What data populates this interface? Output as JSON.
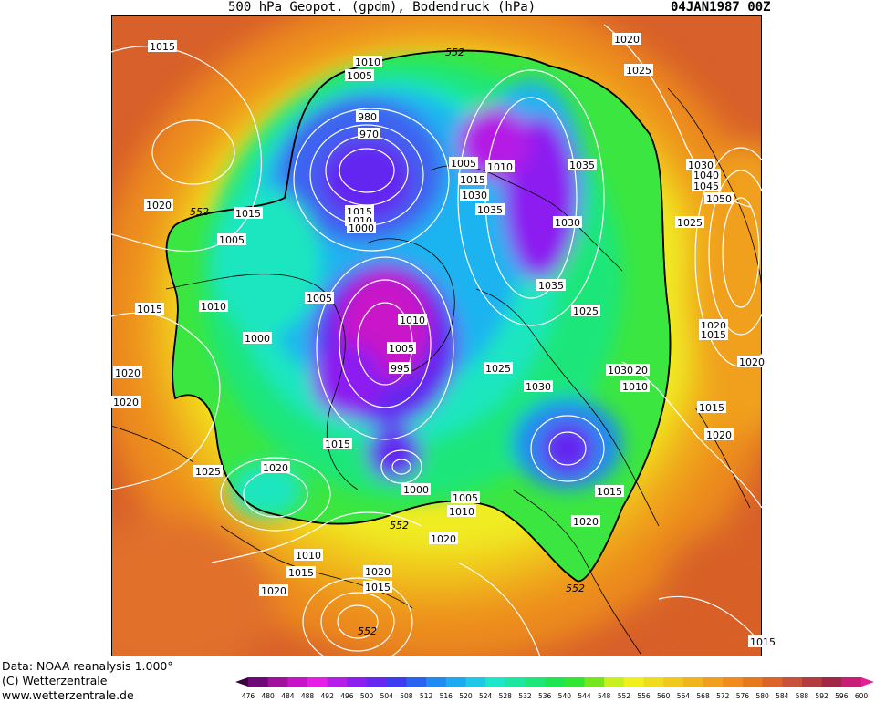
{
  "header": {
    "title": "500 hPa Geopot. (gpdm), Bodendruck (hPa)",
    "date": "04JAN1987 00Z"
  },
  "credits": {
    "data": "Data: NOAA reanalysis 1.000°",
    "copyright": "(C) Wetterzentrale",
    "url": "www.wetterzentrale.de"
  },
  "colorbar": {
    "ticks": [
      "476",
      "480",
      "484",
      "488",
      "492",
      "496",
      "500",
      "504",
      "508",
      "512",
      "516",
      "520",
      "524",
      "528",
      "532",
      "536",
      "540",
      "544",
      "548",
      "552",
      "556",
      "560",
      "564",
      "568",
      "572",
      "576",
      "580",
      "584",
      "588",
      "592",
      "596",
      "600"
    ],
    "colors": [
      "#3d0040",
      "#6e0a78",
      "#a0109c",
      "#c814c8",
      "#e61ee6",
      "#b41ee6",
      "#8c1ef0",
      "#6428f0",
      "#3c3cf0",
      "#2864f0",
      "#1e8cf0",
      "#1eaaf0",
      "#1ec8e6",
      "#1ee6c8",
      "#1ee6a0",
      "#1ee678",
      "#1ee650",
      "#32e632",
      "#78e61e",
      "#c8f01e",
      "#f0f01e",
      "#f0dc1e",
      "#f0c81e",
      "#f0b41e",
      "#f0a01e",
      "#f08c1e",
      "#e6781e",
      "#dc6428",
      "#c8503c",
      "#b43c3c",
      "#a02846",
      "#c81e78",
      "#e61e96"
    ]
  },
  "map": {
    "contour_552_label": "552",
    "pressure_labels": [
      {
        "id": "p1",
        "text": "1015"
      },
      {
        "id": "p2",
        "text": "1010"
      },
      {
        "id": "p3",
        "text": "1005"
      },
      {
        "id": "p4",
        "text": "980"
      },
      {
        "id": "p5",
        "text": "970"
      },
      {
        "id": "p6",
        "text": "1020"
      },
      {
        "id": "p7",
        "text": "1025"
      },
      {
        "id": "p8",
        "text": "1005"
      },
      {
        "id": "p9",
        "text": "1010"
      },
      {
        "id": "p10",
        "text": "1015"
      },
      {
        "id": "p11",
        "text": "1030"
      },
      {
        "id": "p12",
        "text": "1035"
      },
      {
        "id": "p13",
        "text": "1035"
      },
      {
        "id": "p14",
        "text": "1030"
      },
      {
        "id": "p15",
        "text": "1030"
      },
      {
        "id": "p16",
        "text": "1040"
      },
      {
        "id": "p17",
        "text": "1045"
      },
      {
        "id": "p18",
        "text": "1050"
      },
      {
        "id": "p19",
        "text": "1025"
      },
      {
        "id": "p20",
        "text": "1020"
      },
      {
        "id": "p21",
        "text": "1015"
      },
      {
        "id": "p22",
        "text": "1005"
      },
      {
        "id": "p23",
        "text": "1015"
      },
      {
        "id": "p24",
        "text": "1010"
      },
      {
        "id": "p25",
        "text": "1000"
      },
      {
        "id": "p26",
        "text": "1005"
      },
      {
        "id": "p27",
        "text": "1035"
      },
      {
        "id": "p28",
        "text": "1025"
      },
      {
        "id": "p29",
        "text": "1015"
      },
      {
        "id": "p30",
        "text": "1010"
      },
      {
        "id": "p31",
        "text": "1000"
      },
      {
        "id": "p32",
        "text": "1020"
      },
      {
        "id": "p33",
        "text": "1015"
      },
      {
        "id": "p34",
        "text": "1010"
      },
      {
        "id": "p35",
        "text": "1005"
      },
      {
        "id": "p36",
        "text": "995"
      },
      {
        "id": "p37",
        "text": "1025"
      },
      {
        "id": "p38",
        "text": "1030"
      },
      {
        "id": "p39",
        "text": "1020"
      },
      {
        "id": "p40",
        "text": "1010"
      },
      {
        "id": "p41",
        "text": "1030"
      },
      {
        "id": "p42",
        "text": "1020"
      },
      {
        "id": "p43",
        "text": "1015"
      },
      {
        "id": "p44",
        "text": "1020"
      },
      {
        "id": "p45",
        "text": "1015"
      },
      {
        "id": "p46",
        "text": "1025"
      },
      {
        "id": "p47",
        "text": "1020"
      },
      {
        "id": "p48",
        "text": "1000"
      },
      {
        "id": "p49",
        "text": "1005"
      },
      {
        "id": "p50",
        "text": "1010"
      },
      {
        "id": "p51",
        "text": "1015"
      },
      {
        "id": "p52",
        "text": "1020"
      },
      {
        "id": "p53",
        "text": "1020"
      },
      {
        "id": "p54",
        "text": "1010"
      },
      {
        "id": "p55",
        "text": "1015"
      },
      {
        "id": "p56",
        "text": "1020"
      },
      {
        "id": "p57",
        "text": "1020"
      },
      {
        "id": "p58",
        "text": "1015"
      },
      {
        "id": "p59",
        "text": "1015"
      },
      {
        "id": "p60",
        "text": "1020"
      },
      {
        "id": "p61",
        "text": "1020"
      }
    ]
  }
}
